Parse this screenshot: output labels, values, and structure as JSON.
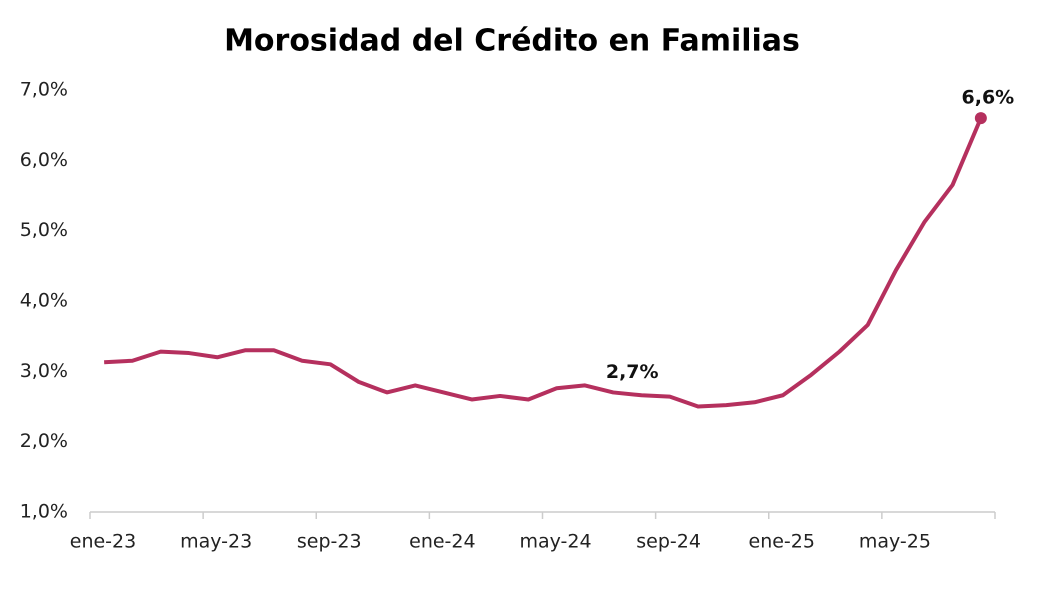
{
  "chart_data": {
    "type": "line",
    "title": "Morosidad del Crédito en Familias",
    "categories": [
      "ene-23",
      null,
      null,
      null,
      "may-23",
      null,
      null,
      null,
      "sep-23",
      null,
      null,
      null,
      "ene-24",
      null,
      null,
      null,
      "may-24",
      null,
      null,
      null,
      "sep-24",
      null,
      null,
      null,
      "ene-25",
      null,
      null,
      null,
      "may-25",
      null,
      null,
      null
    ],
    "series": [
      {
        "name": "Morosidad",
        "color": "#b5305e",
        "values": [
          3.13,
          3.15,
          3.28,
          3.26,
          3.2,
          3.3,
          3.3,
          3.15,
          3.1,
          2.85,
          2.7,
          2.8,
          2.7,
          2.6,
          2.65,
          2.6,
          2.76,
          2.8,
          2.7,
          2.66,
          2.64,
          2.5,
          2.52,
          2.56,
          2.66,
          2.95,
          3.28,
          3.66,
          4.44,
          5.12,
          5.65,
          6.6
        ],
        "value_labels": [
          null,
          null,
          null,
          null,
          null,
          null,
          null,
          null,
          null,
          null,
          null,
          null,
          null,
          null,
          null,
          null,
          null,
          null,
          "2,7%",
          null,
          null,
          null,
          null,
          null,
          null,
          null,
          null,
          null,
          null,
          null,
          null,
          "6,6%"
        ]
      }
    ],
    "ylim": [
      1,
      7
    ],
    "yticks": [
      {
        "value": 1,
        "label": "1,0%"
      },
      {
        "value": 2,
        "label": "2,0%"
      },
      {
        "value": 3,
        "label": "3,0%"
      },
      {
        "value": 4,
        "label": "4,0%"
      },
      {
        "value": 5,
        "label": "5,0%"
      },
      {
        "value": 6,
        "label": "6,0%"
      },
      {
        "value": 7,
        "label": "7,0%"
      }
    ],
    "grid": false
  }
}
